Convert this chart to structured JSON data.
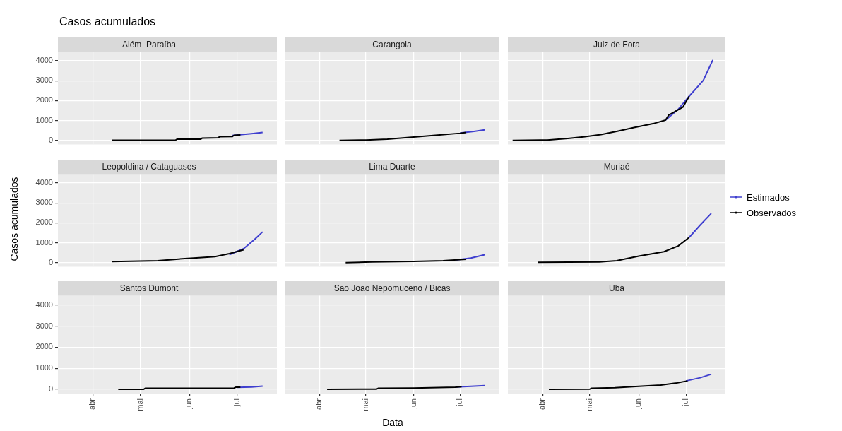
{
  "chart_data": [
    {
      "type": "line",
      "title": "Além  Paraíba",
      "annotations": [
        "Casos acumulados"
      ],
      "xlim": [
        "--03-10",
        "--07-26"
      ],
      "xticks": [
        {
          "value": "--04-01",
          "label": "abr"
        },
        {
          "value": "--05-01",
          "label": "mai"
        },
        {
          "value": "--06-01",
          "label": "jun"
        },
        {
          "value": "--07-01",
          "label": "jul"
        }
      ],
      "ylim": [
        -200,
        4450
      ],
      "yticks": [
        0,
        1000,
        2000,
        3000,
        4000
      ],
      "grid": true,
      "legend": false,
      "tick_labels": "y",
      "series": [
        {
          "color": "#000000",
          "x": [
            "--04-13",
            "--05-23",
            "--05-24",
            "--06-08",
            "--06-09",
            "--06-19",
            "--06-20",
            "--06-28",
            "--06-29",
            "--07-03"
          ],
          "values": [
            10,
            10,
            60,
            60,
            120,
            130,
            190,
            200,
            260,
            280
          ]
        },
        {
          "color": "#3f3fcf",
          "x": [
            "--06-28",
            "--07-05",
            "--07-10",
            "--07-17"
          ],
          "values": [
            250,
            300,
            340,
            400
          ]
        }
      ]
    },
    {
      "type": "line",
      "title": "Carangola",
      "xlim": [
        "--03-10",
        "--07-26"
      ],
      "xticks": [
        {
          "value": "--04-01",
          "label": "abr"
        },
        {
          "value": "--05-01",
          "label": "mai"
        },
        {
          "value": "--06-01",
          "label": "jun"
        },
        {
          "value": "--07-01",
          "label": "jul"
        }
      ],
      "ylim": [
        -200,
        4450
      ],
      "yticks": [
        0,
        1000,
        2000,
        3000,
        4000
      ],
      "grid": true,
      "legend": false,
      "tick_labels": false,
      "series": [
        {
          "color": "#000000",
          "x": [
            "--04-14",
            "--05-01",
            "--05-15",
            "--06-01",
            "--06-15",
            "--07-01",
            "--07-05"
          ],
          "values": [
            0,
            20,
            60,
            170,
            260,
            360,
            400
          ]
        },
        {
          "color": "#3f3fcf",
          "x": [
            "--07-01",
            "--07-10",
            "--07-17"
          ],
          "values": [
            370,
            450,
            530
          ]
        }
      ]
    },
    {
      "type": "line",
      "title": "Juiz de Fora",
      "xlim": [
        "--03-10",
        "--07-26"
      ],
      "xticks": [
        {
          "value": "--04-01",
          "label": "abr"
        },
        {
          "value": "--05-01",
          "label": "mai"
        },
        {
          "value": "--06-01",
          "label": "jun"
        },
        {
          "value": "--07-01",
          "label": "jul"
        }
      ],
      "ylim": [
        -200,
        4450
      ],
      "yticks": [
        0,
        1000,
        2000,
        3000,
        4000
      ],
      "grid": true,
      "legend": false,
      "tick_labels": false,
      "series": [
        {
          "color": "#000000",
          "x": [
            "--03-13",
            "--04-04",
            "--04-17",
            "--04-27",
            "--05-08",
            "--05-19",
            "--05-29",
            "--06-10",
            "--06-18",
            "--06-20",
            "--06-29",
            "--07-03"
          ],
          "values": [
            0,
            20,
            100,
            180,
            290,
            470,
            650,
            840,
            1020,
            1270,
            1670,
            2220
          ]
        },
        {
          "color": "#3f3fcf",
          "x": [
            "--06-18",
            "--06-26",
            "--07-03",
            "--07-12",
            "--07-18"
          ],
          "values": [
            1020,
            1560,
            2220,
            3020,
            4040
          ]
        }
      ]
    },
    {
      "type": "line",
      "title": "Leopoldina / Cataguases",
      "ylabel": "Casos acumulados",
      "xlim": [
        "--03-10",
        "--07-26"
      ],
      "xticks": [
        {
          "value": "--04-01",
          "label": "abr"
        },
        {
          "value": "--05-01",
          "label": "mai"
        },
        {
          "value": "--06-01",
          "label": "jun"
        },
        {
          "value": "--07-01",
          "label": "jul"
        }
      ],
      "ylim": [
        -200,
        4450
      ],
      "yticks": [
        0,
        1000,
        2000,
        3000,
        4000
      ],
      "grid": true,
      "legend": false,
      "tick_labels": "y",
      "series": [
        {
          "color": "#000000",
          "x": [
            "--04-13",
            "--05-12",
            "--05-25",
            "--06-07",
            "--06-17",
            "--06-26",
            "--07-05"
          ],
          "values": [
            50,
            100,
            180,
            250,
            300,
            450,
            650
          ]
        },
        {
          "color": "#3f3fcf",
          "x": [
            "--06-26",
            "--07-05",
            "--07-12",
            "--07-17"
          ],
          "values": [
            400,
            700,
            1170,
            1550
          ]
        }
      ]
    },
    {
      "type": "line",
      "title": "Lima Duarte",
      "xlim": [
        "--03-10",
        "--07-26"
      ],
      "xticks": [
        {
          "value": "--04-01",
          "label": "abr"
        },
        {
          "value": "--05-01",
          "label": "mai"
        },
        {
          "value": "--06-01",
          "label": "jun"
        },
        {
          "value": "--07-01",
          "label": "jul"
        }
      ],
      "ylim": [
        -200,
        4450
      ],
      "yticks": [
        0,
        1000,
        2000,
        3000,
        4000
      ],
      "grid": true,
      "legend": false,
      "tick_labels": false,
      "series": [
        {
          "color": "#000000",
          "x": [
            "--04-18",
            "--05-05",
            "--06-01",
            "--06-20",
            "--07-01",
            "--07-05"
          ],
          "values": [
            0,
            40,
            60,
            100,
            150,
            170
          ]
        },
        {
          "color": "#3f3fcf",
          "x": [
            "--06-28",
            "--07-08",
            "--07-17"
          ],
          "values": [
            130,
            230,
            400
          ]
        }
      ]
    },
    {
      "type": "line",
      "title": "Muriaé",
      "xlim": [
        "--03-10",
        "--07-26"
      ],
      "xticks": [
        {
          "value": "--04-01",
          "label": "abr"
        },
        {
          "value": "--05-01",
          "label": "mai"
        },
        {
          "value": "--06-01",
          "label": "jun"
        },
        {
          "value": "--07-01",
          "label": "jul"
        }
      ],
      "ylim": [
        -200,
        4450
      ],
      "yticks": [
        0,
        1000,
        2000,
        3000,
        4000
      ],
      "grid": true,
      "legend": "right",
      "tick_labels": false,
      "series": [
        {
          "name": "Observados",
          "color": "#000000",
          "x": [
            "--03-29",
            "--05-07",
            "--05-18",
            "--06-01",
            "--06-17",
            "--06-26",
            "--07-03"
          ],
          "values": [
            20,
            40,
            100,
            330,
            550,
            840,
            1270
          ]
        },
        {
          "name": "Estimados",
          "color": "#3f3fcf",
          "x": [
            "--07-03",
            "--07-10",
            "--07-17"
          ],
          "values": [
            1270,
            1890,
            2470
          ]
        }
      ]
    },
    {
      "type": "line",
      "title": "Santos Dumont",
      "xlim": [
        "--03-10",
        "--07-26"
      ],
      "xticks": [
        {
          "value": "--04-01",
          "label": "abr"
        },
        {
          "value": "--05-01",
          "label": "mai"
        },
        {
          "value": "--06-01",
          "label": "jun"
        },
        {
          "value": "--07-01",
          "label": "jul"
        }
      ],
      "ylim": [
        -200,
        4450
      ],
      "yticks": [
        0,
        1000,
        2000,
        3000,
        4000
      ],
      "grid": true,
      "legend": false,
      "series": [
        {
          "color": "#000000",
          "x": [
            "--04-17",
            "--05-03",
            "--05-04",
            "--06-29",
            "--06-30",
            "--07-03"
          ],
          "values": [
            0,
            0,
            50,
            60,
            100,
            100
          ]
        },
        {
          "color": "#3f3fcf",
          "x": [
            "--07-01",
            "--07-10",
            "--07-17"
          ],
          "values": [
            90,
            110,
            150
          ]
        }
      ]
    },
    {
      "type": "line",
      "title": "São João Nepomuceno / Bicas",
      "xlabel": "Data",
      "xlim": [
        "--03-10",
        "--07-26"
      ],
      "xticks": [
        {
          "value": "--04-01",
          "label": "abr"
        },
        {
          "value": "--05-01",
          "label": "mai"
        },
        {
          "value": "--06-01",
          "label": "jun"
        },
        {
          "value": "--07-01",
          "label": "jul"
        }
      ],
      "ylim": [
        -200,
        4450
      ],
      "yticks": [
        0,
        1000,
        2000,
        3000,
        4000
      ],
      "grid": true,
      "legend": false,
      "tick_labels": "x",
      "series": [
        {
          "color": "#000000",
          "x": [
            "--04-06",
            "--05-08",
            "--05-09",
            "--06-01",
            "--06-28",
            "--07-02"
          ],
          "values": [
            0,
            10,
            50,
            60,
            100,
            130
          ]
        },
        {
          "color": "#3f3fcf",
          "x": [
            "--06-28",
            "--07-08",
            "--07-17"
          ],
          "values": [
            110,
            140,
            180
          ]
        }
      ]
    },
    {
      "type": "line",
      "title": "Ubá",
      "xlim": [
        "--03-10",
        "--07-26"
      ],
      "xticks": [
        {
          "value": "--04-01",
          "label": "abr"
        },
        {
          "value": "--05-01",
          "label": "mai"
        },
        {
          "value": "--06-01",
          "label": "jun"
        },
        {
          "value": "--07-01",
          "label": "jul"
        }
      ],
      "ylim": [
        -200,
        4450
      ],
      "yticks": [
        0,
        1000,
        2000,
        3000,
        4000
      ],
      "grid": true,
      "legend": false,
      "tick_labels": "x",
      "series": [
        {
          "color": "#000000",
          "x": [
            "--04-05",
            "--05-01",
            "--05-02",
            "--05-17",
            "--06-01",
            "--06-15",
            "--06-25",
            "--07-02"
          ],
          "values": [
            0,
            10,
            50,
            80,
            140,
            200,
            300,
            400
          ]
        },
        {
          "color": "#3f3fcf",
          "x": [
            "--07-01",
            "--07-10",
            "--07-17"
          ],
          "values": [
            400,
            550,
            720
          ]
        }
      ]
    }
  ]
}
